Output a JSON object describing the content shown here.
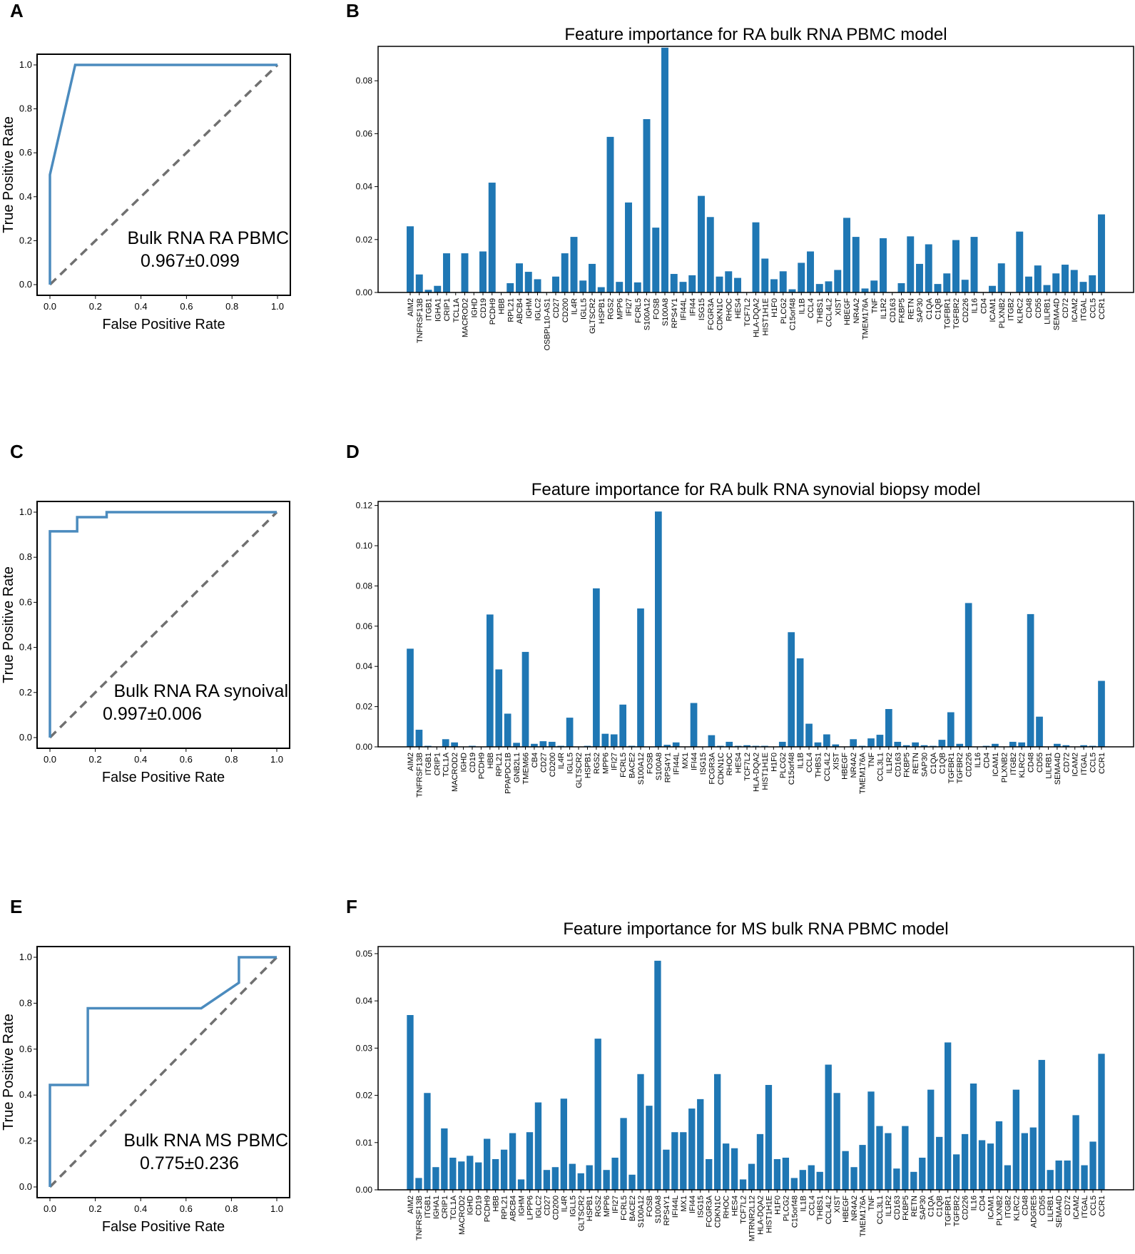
{
  "panels": {
    "A": {
      "letter": "A",
      "chart_data": {
        "type": "line",
        "xlabel": "False Positive Rate",
        "ylabel": "True Positive Rate",
        "xlim": [
          0,
          1
        ],
        "ylim": [
          0,
          1
        ],
        "xticks": [
          "0.0",
          "0.2",
          "0.4",
          "0.6",
          "0.8",
          "1.0"
        ],
        "yticks": [
          "0.0",
          "0.2",
          "0.4",
          "0.6",
          "0.8",
          "1.0"
        ],
        "roc_x": [
          0,
          0,
          0.111,
          1
        ],
        "roc_y": [
          0,
          0.5,
          1,
          1
        ],
        "diagonal": true,
        "annotation_label": "Bulk RNA RA PBMC",
        "annotation_auc": "0.967±0.099",
        "line_color": "#4b8bbe"
      }
    },
    "B": {
      "letter": "B",
      "chart_data": {
        "type": "bar",
        "title": "Feature importance for RA bulk RNA PBMC model",
        "ylim": [
          0,
          0.093
        ],
        "yticks": [
          "0.00",
          "0.02",
          "0.04",
          "0.06",
          "0.08"
        ],
        "bar_color": "#1f77b4",
        "categories": [
          "AIM2",
          "TNFRSF13B",
          "ITGB1",
          "IGHA1",
          "CRIP1",
          "TCL1A",
          "MACROD2",
          "IGHD",
          "CD19",
          "PCDH9",
          "HBB",
          "RPL21",
          "ABCB4",
          "IGHM",
          "IGLC2",
          "OSBPL10-AS1",
          "CD27",
          "CD200",
          "IL4R",
          "IGLL5",
          "GLTSCR2",
          "HSPB1",
          "RGS2",
          "MPP6",
          "IFI27",
          "FCRL5",
          "S100A12",
          "FOSB",
          "S100A8",
          "RPS4Y1",
          "IFI44L",
          "IFI44",
          "ISG15",
          "FCGR3A",
          "CDKN1C",
          "RHOC",
          "HES4",
          "TCF7L2",
          "HLA-DQA2",
          "HIST1H1E",
          "H1F0",
          "PLCG2",
          "C15orf48",
          "IL1B",
          "CCL4",
          "THBS1",
          "CCL4L2",
          "XIST",
          "HBEGF",
          "NR4A2",
          "TMEM176A",
          "TNF",
          "IL1R2",
          "CD163",
          "FKBP5",
          "RETN",
          "SAP30",
          "C1QA",
          "C1QB",
          "TGFBR1",
          "TGFBR2",
          "CD226",
          "IL16",
          "CD4",
          "ICAM1",
          "PLXNB2",
          "ITGB2",
          "KLRC2",
          "CD48",
          "CD55",
          "LILRB1",
          "SEMA4D",
          "CD72",
          "ICAM2",
          "ITGAL",
          "CCL5",
          "CCR1"
        ],
        "values": [
          0.025,
          0.0068,
          0.001,
          0.0025,
          0.0148,
          0.0,
          0.0148,
          0.0,
          0.0155,
          0.0415,
          0.0,
          0.0035,
          0.011,
          0.0078,
          0.005,
          0.0,
          0.006,
          0.0148,
          0.021,
          0.0045,
          0.0108,
          0.002,
          0.0588,
          0.004,
          0.034,
          0.0038,
          0.0655,
          0.0245,
          0.0925,
          0.007,
          0.004,
          0.0065,
          0.0365,
          0.0285,
          0.006,
          0.008,
          0.0055,
          0.0,
          0.0265,
          0.0128,
          0.005,
          0.008,
          0.0012,
          0.0112,
          0.0155,
          0.0032,
          0.0042,
          0.0085,
          0.0282,
          0.021,
          0.0015,
          0.0045,
          0.0205,
          0.0,
          0.0035,
          0.0212,
          0.0108,
          0.0182,
          0.0032,
          0.0072,
          0.0198,
          0.0048,
          0.021,
          0.0,
          0.0025,
          0.011,
          0.0,
          0.023,
          0.006,
          0.0102,
          0.0028,
          0.0072,
          0.0105,
          0.0085,
          0.004,
          0.0065,
          0.0295
        ]
      }
    },
    "C": {
      "letter": "C",
      "chart_data": {
        "type": "line",
        "xlabel": "False Positive Rate",
        "ylabel": "True Positive Rate",
        "xlim": [
          0,
          1
        ],
        "ylim": [
          0,
          1
        ],
        "xticks": [
          "0.0",
          "0.2",
          "0.4",
          "0.6",
          "0.8",
          "1.0"
        ],
        "yticks": [
          "0.0",
          "0.2",
          "0.4",
          "0.6",
          "0.8",
          "1.0"
        ],
        "roc_x": [
          0,
          0,
          0.12,
          0.12,
          0.25,
          0.25,
          1
        ],
        "roc_y": [
          0,
          0.915,
          0.915,
          0.978,
          0.978,
          1,
          1
        ],
        "diagonal": true,
        "annotation_label": "Bulk RNA RA synoival",
        "annotation_auc": "0.997±0.006",
        "line_color": "#4b8bbe"
      }
    },
    "D": {
      "letter": "D",
      "chart_data": {
        "type": "bar",
        "title": "Feature importance for RA bulk RNA synovial biopsy model",
        "ylim": [
          0,
          0.122
        ],
        "yticks": [
          "0.00",
          "0.02",
          "0.04",
          "0.06",
          "0.08",
          "0.10",
          "0.12"
        ],
        "bar_color": "#1f77b4",
        "categories": [
          "AIM2",
          "TNFRSF13B",
          "ITGB1",
          "CRIP1",
          "TCL1A",
          "MACROD2",
          "IGHD",
          "CD19",
          "PCDH9",
          "HBB",
          "RPL21",
          "PPAPDC1B",
          "GNB2L1",
          "TMEM66",
          "CB4",
          "CD27",
          "CD200",
          "IL4R",
          "IGLL5",
          "GLTSCR2",
          "HSPB1",
          "RGS2",
          "MPP6",
          "IFI27",
          "FCRL5",
          "BACE2",
          "S100A12",
          "FOSB",
          "S100A8",
          "RPS4Y1",
          "IFI44L",
          "MX1",
          "IFI44",
          "ISG15",
          "FCGR3A",
          "CDKN1C",
          "RHOC",
          "HES4",
          "TCF7L2",
          "HLA-DQA2",
          "HIST1H1E",
          "H1F0",
          "PLCG2",
          "C15orf48",
          "IL1B",
          "CCL4",
          "THBS1",
          "CCL4L2",
          "XIST",
          "HBEGF",
          "NR4A2",
          "TMEM176A",
          "TNF",
          "CCL3L1",
          "IL1R2",
          "CD163",
          "FKBP5",
          "RETN",
          "SAP30",
          "C1QA",
          "C1QB",
          "TGFBR1",
          "TGFBR2",
          "CD226",
          "IL16",
          "CD4",
          "ICAM1",
          "PLXNB2",
          "ITGB2",
          "KLRC2",
          "CD48",
          "CD55",
          "LILRB1",
          "SEMA4D",
          "CD72",
          "ICAM2",
          "ITGAL",
          "CCL5",
          "CCR1"
        ],
        "values": [
          0.0488,
          0.0085,
          0.0005,
          0.0,
          0.0038,
          0.0022,
          0.0,
          0.0005,
          0.0,
          0.0658,
          0.0385,
          0.0165,
          0.002,
          0.0472,
          0.0015,
          0.0028,
          0.0025,
          0.0005,
          0.0145,
          0.0,
          0.0005,
          0.0788,
          0.0065,
          0.0062,
          0.021,
          0.0005,
          0.0688,
          0.0,
          0.117,
          0.001,
          0.0022,
          0.0,
          0.0218,
          0.0,
          0.0058,
          0.0005,
          0.0025,
          0.0005,
          0.0008,
          0.0005,
          0.0005,
          0.0,
          0.0025,
          0.057,
          0.044,
          0.0115,
          0.0022,
          0.0062,
          0.0012,
          0.0,
          0.0038,
          0.0005,
          0.0042,
          0.006,
          0.0188,
          0.0025,
          0.0008,
          0.0022,
          0.0008,
          0.0005,
          0.0035,
          0.0172,
          0.0015,
          0.0715,
          0.0,
          0.0005,
          0.0015,
          0.0,
          0.0025,
          0.0022,
          0.066,
          0.015,
          0.0,
          0.0015,
          0.0008,
          0.0,
          0.0008,
          0.0005,
          0.0328
        ]
      }
    },
    "E": {
      "letter": "E",
      "chart_data": {
        "type": "line",
        "xlabel": "False Positive Rate",
        "ylabel": "True Positive Rate",
        "xlim": [
          0,
          1
        ],
        "ylim": [
          0,
          1
        ],
        "xticks": [
          "0.0",
          "0.2",
          "0.4",
          "0.6",
          "0.8",
          "1.0"
        ],
        "yticks": [
          "0.0",
          "0.2",
          "0.4",
          "0.6",
          "0.8",
          "1.0"
        ],
        "roc_x": [
          0,
          0,
          0.167,
          0.167,
          0.667,
          0.833,
          0.833,
          1
        ],
        "roc_y": [
          0,
          0.444,
          0.444,
          0.778,
          0.778,
          0.889,
          1,
          1
        ],
        "diagonal": true,
        "annotation_label": "Bulk RNA MS PBMC",
        "annotation_auc": "0.775±0.236",
        "line_color": "#4b8bbe"
      }
    },
    "F": {
      "letter": "F",
      "chart_data": {
        "type": "bar",
        "title": "Feature importance for MS bulk RNA PBMC model",
        "ylim": [
          0,
          0.0515
        ],
        "yticks": [
          "0.00",
          "0.01",
          "0.02",
          "0.03",
          "0.04",
          "0.05"
        ],
        "bar_color": "#1f77b4",
        "categories": [
          "AIM2",
          "TNFRSF13B",
          "ITGB1",
          "IGHA1",
          "CRIP1",
          "TCL1A",
          "MACROD2",
          "IGHD",
          "CD19",
          "PCDH9",
          "HBB",
          "RPL21",
          "ABCB4",
          "IGHM",
          "LPPP6",
          "IGLC2",
          "CD27",
          "CD200",
          "IL4R",
          "IGLL5",
          "GLTSCR2",
          "HSPB1",
          "RGS2",
          "MPP6",
          "IFI27",
          "FCRL5",
          "BACE2",
          "S100A12",
          "FOSB",
          "S100A8",
          "RPS4Y1",
          "IFI44L",
          "MX1",
          "IFI44",
          "ISG15",
          "FCGR3A",
          "CDKN1C",
          "RHOC",
          "HES4",
          "TCF7L2",
          "MTRNR2L12",
          "HLA-DQA2",
          "HIST1H1E",
          "H1F0",
          "PLCG2",
          "C15orf48",
          "IL1B",
          "CCL4",
          "THBS1",
          "CCL4L2",
          "XIST",
          "HBEGF",
          "NR4A2",
          "TMEM176A",
          "TNF",
          "CCL3L1",
          "IL1R2",
          "CD163",
          "FKBP5",
          "RETN",
          "SAP30",
          "C1QA",
          "C1QB",
          "TGFBR1",
          "TGFBR2",
          "CD226",
          "IL16",
          "CD4",
          "ICAM1",
          "PLXNB2",
          "ITGB2",
          "KLRC2",
          "CD48",
          "ADGRE5",
          "CD55",
          "LILRB1",
          "SEMA4D",
          "CD72",
          "ICAM2",
          "ITGAL",
          "CCL5",
          "CCR1"
        ],
        "values": [
          0.037,
          0.0025,
          0.0205,
          0.0048,
          0.013,
          0.0068,
          0.006,
          0.0072,
          0.0058,
          0.0108,
          0.0065,
          0.0085,
          0.012,
          0.0022,
          0.0122,
          0.0185,
          0.0042,
          0.0048,
          0.0193,
          0.0055,
          0.0035,
          0.0052,
          0.032,
          0.0042,
          0.0068,
          0.0152,
          0.0032,
          0.0245,
          0.0178,
          0.0485,
          0.0085,
          0.0122,
          0.0122,
          0.0172,
          0.0192,
          0.0065,
          0.0245,
          0.0098,
          0.0088,
          0.0022,
          0.0055,
          0.0118,
          0.0222,
          0.0065,
          0.0068,
          0.0025,
          0.0042,
          0.0052,
          0.0038,
          0.0265,
          0.0205,
          0.0082,
          0.0048,
          0.0095,
          0.0208,
          0.0135,
          0.012,
          0.0045,
          0.0135,
          0.0038,
          0.0068,
          0.0212,
          0.0112,
          0.0312,
          0.0075,
          0.0118,
          0.0225,
          0.0105,
          0.0098,
          0.0145,
          0.0052,
          0.0212,
          0.012,
          0.0132,
          0.0275,
          0.0042,
          0.0062,
          0.0062,
          0.0158,
          0.0052,
          0.0102,
          0.0288
        ]
      }
    }
  }
}
